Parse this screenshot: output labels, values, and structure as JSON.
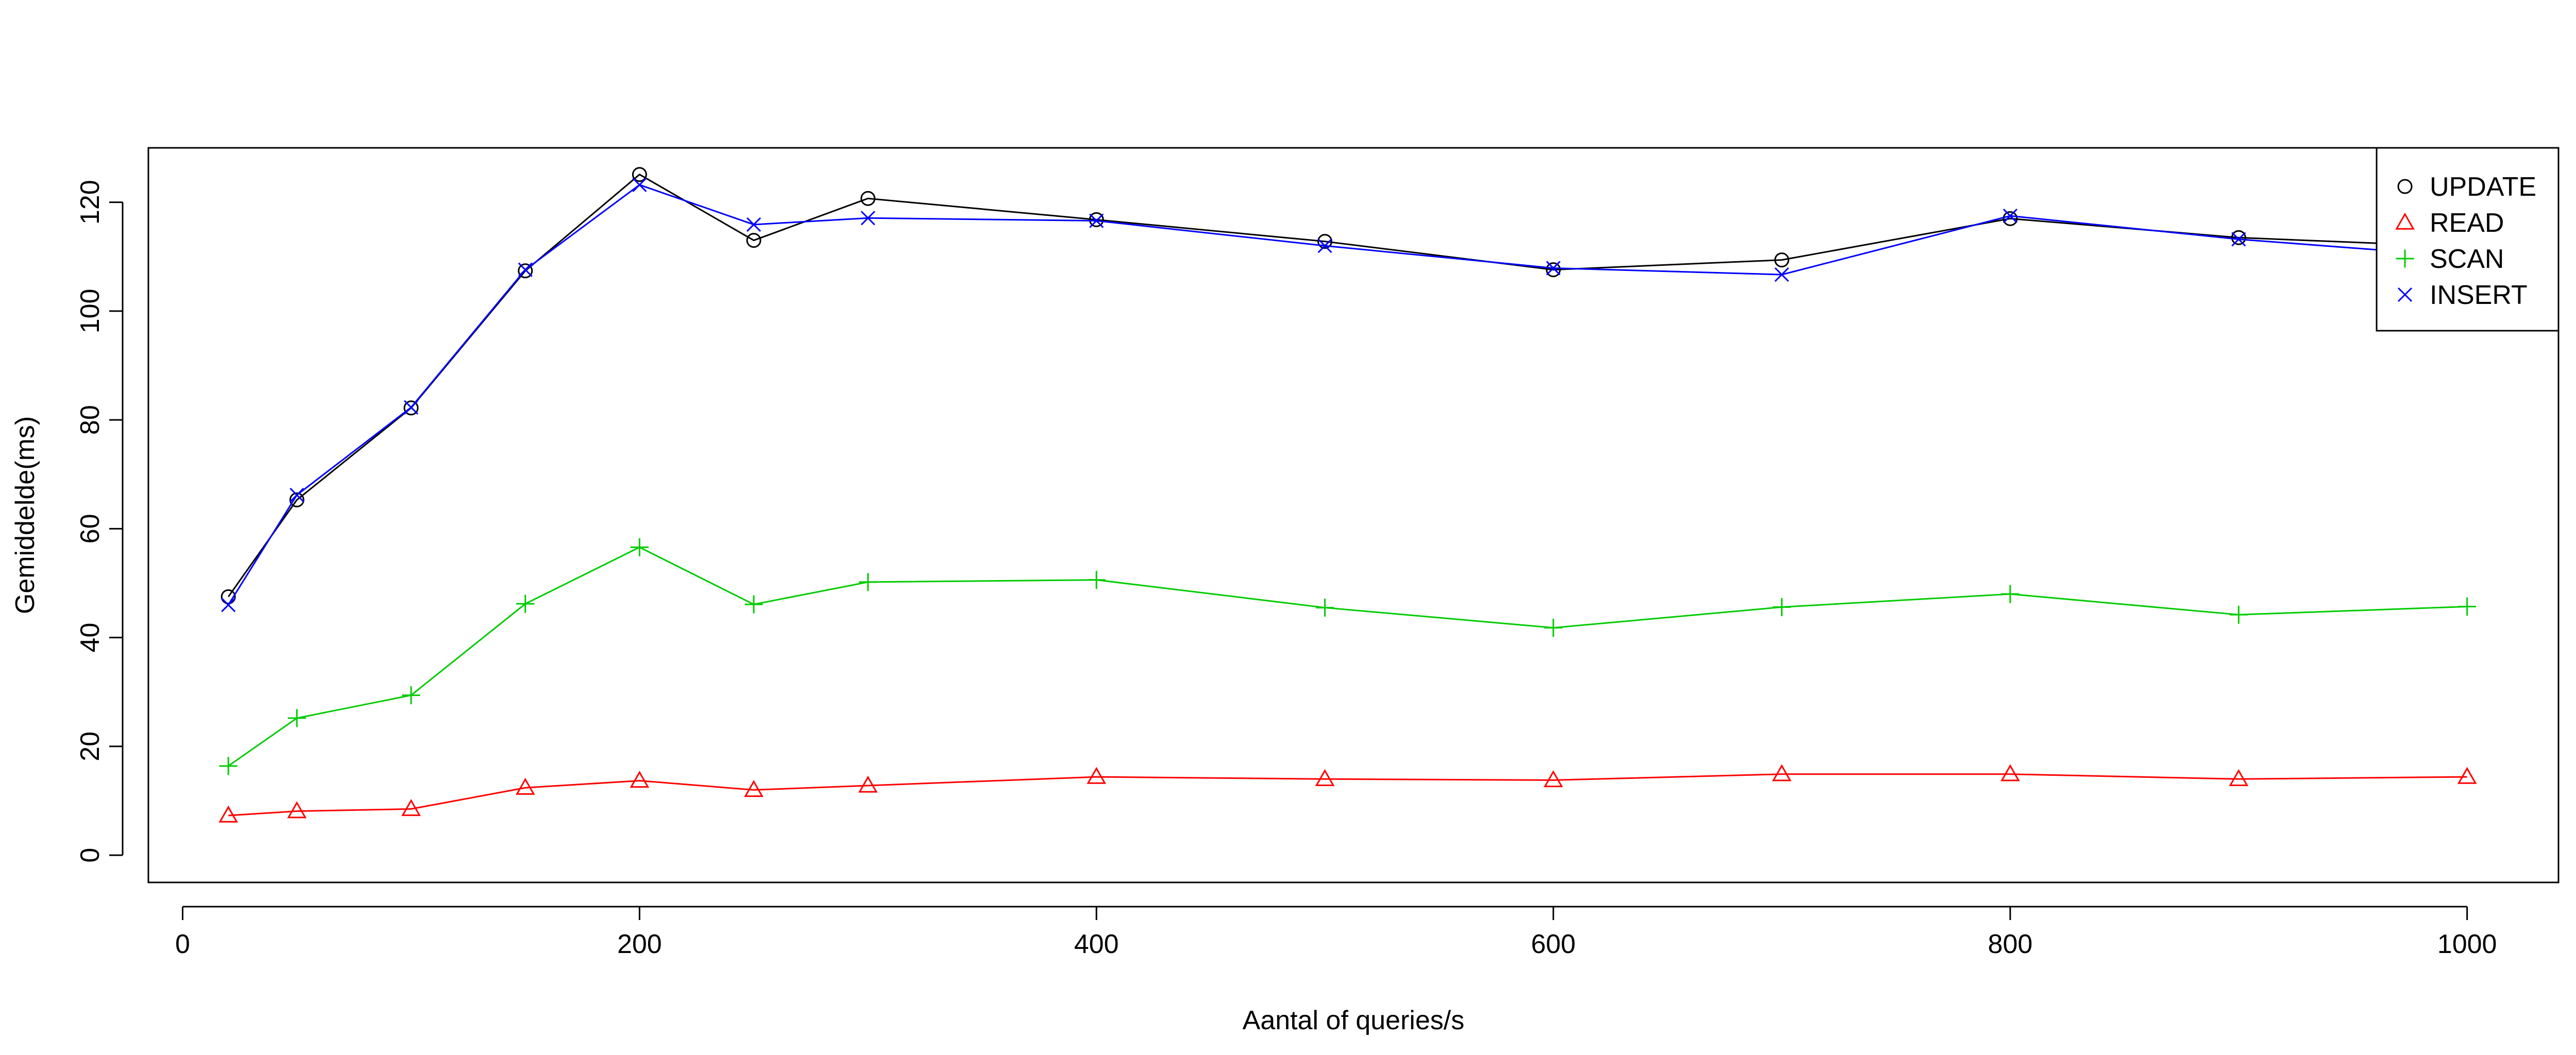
{
  "chart_data": {
    "type": "line",
    "title": "",
    "xlabel": "Aantal of queries/s",
    "ylabel": "Gemiddelde(ms)",
    "xlim": [
      -15,
      1040
    ],
    "ylim": [
      -5,
      130
    ],
    "xticks": [
      "0",
      "200",
      "400",
      "600",
      "800",
      "1000"
    ],
    "yticks": [
      "0",
      "20",
      "40",
      "60",
      "80",
      "100",
      "120"
    ],
    "grid": false,
    "legend_position": "top-right",
    "x": [
      20,
      50,
      100,
      150,
      200,
      250,
      300,
      400,
      500,
      600,
      700,
      800,
      900,
      1000
    ],
    "series": [
      {
        "name": "UPDATE",
        "color": "#000000",
        "marker": "circle",
        "values": [
          47.5,
          65.3,
          82.2,
          107.4,
          125.1,
          113.0,
          120.7,
          116.8,
          112.8,
          107.6,
          109.4,
          117.0,
          113.5,
          111.8
        ]
      },
      {
        "name": "READ",
        "color": "#ff0000",
        "marker": "triangle",
        "values": [
          7.3,
          8.1,
          8.5,
          12.4,
          13.7,
          12.0,
          12.8,
          14.4,
          14.0,
          13.8,
          14.9,
          14.9,
          14.0,
          14.4
        ]
      },
      {
        "name": "SCAN",
        "color": "#00cc00",
        "marker": "plus",
        "values": [
          16.4,
          25.2,
          29.4,
          46.2,
          56.6,
          46.1,
          50.2,
          50.6,
          45.5,
          41.8,
          45.6,
          48.0,
          44.2,
          45.7
        ]
      },
      {
        "name": "INSERT",
        "color": "#0000ff",
        "marker": "x",
        "values": [
          46.0,
          66.2,
          82.3,
          107.6,
          123.2,
          115.9,
          117.1,
          116.6,
          112.0,
          107.9,
          106.7,
          117.5,
          113.2,
          110.0
        ]
      }
    ]
  }
}
